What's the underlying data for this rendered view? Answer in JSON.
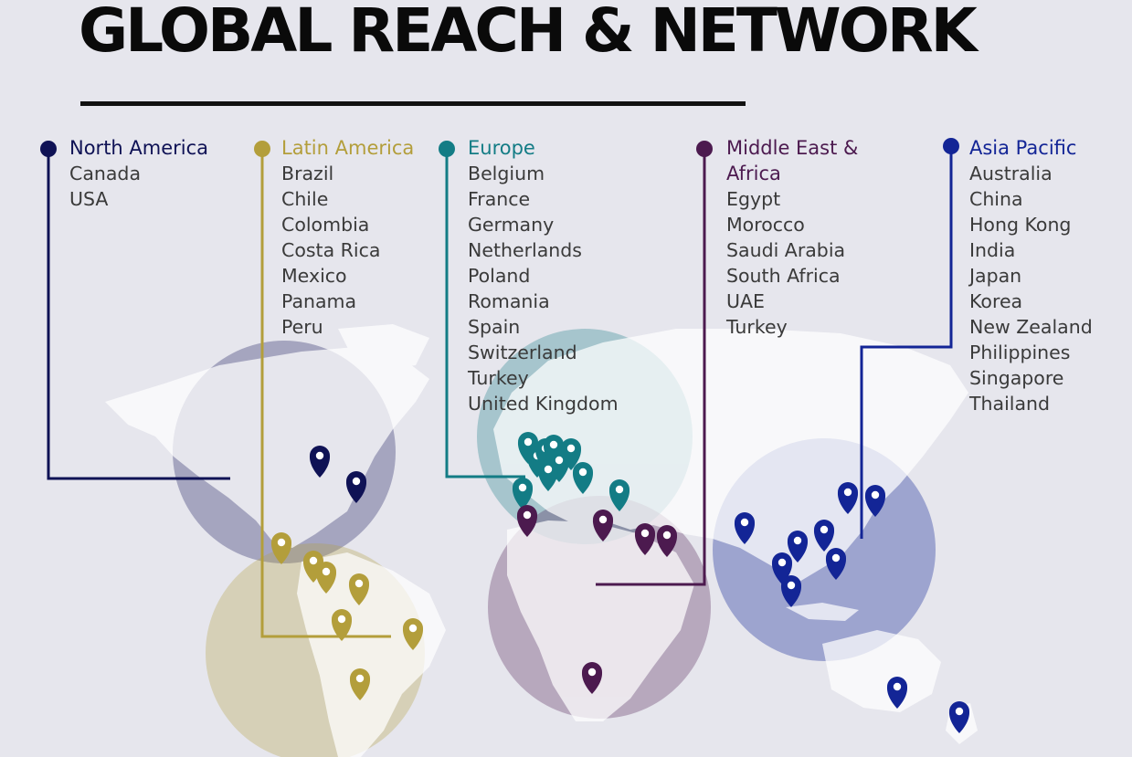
{
  "page": {
    "title": "GLOBAL REACH & NETWORK"
  },
  "colors": {
    "background": "#e6e6ed",
    "north_america": "#0f1255",
    "latin_america": "#b39e3b",
    "europe": "#137c85",
    "middle_east_africa": "#4c1a4f",
    "asia_pacific": "#132596"
  },
  "regions": [
    {
      "key": "north_america",
      "heading": "North America",
      "countries": [
        "Canada",
        "USA"
      ],
      "pins": 2
    },
    {
      "key": "latin_america",
      "heading": "Latin America",
      "countries": [
        "Brazil",
        "Chile",
        "Colombia",
        "Costa Rica",
        "Mexico",
        "Panama",
        "Peru"
      ],
      "pins": 8
    },
    {
      "key": "europe",
      "heading": "Europe",
      "countries": [
        "Belgium",
        "France",
        "Germany",
        "Netherlands",
        "Poland",
        "Romania",
        "Spain",
        "Switzerland",
        "Turkey",
        "United Kingdom"
      ],
      "pins": 12
    },
    {
      "key": "middle_east_africa",
      "heading": "Middle East &\nAfrica",
      "countries": [
        "Egypt",
        "Morocco",
        "Saudi Arabia",
        "South Africa",
        "UAE",
        "Turkey"
      ],
      "pins": 6
    },
    {
      "key": "asia_pacific",
      "heading": "Asia Pacific",
      "countries": [
        "Australia",
        "China",
        "Hong Kong",
        "India",
        "Japan",
        "Korea",
        "New Zealand",
        "Philippines",
        "Singapore",
        "Thailand"
      ],
      "pins": 12
    }
  ]
}
